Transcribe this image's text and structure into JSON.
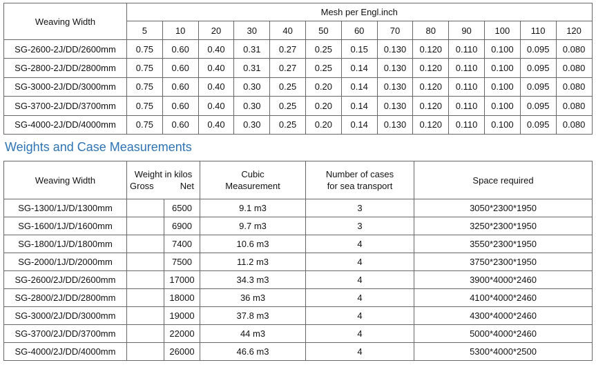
{
  "mesh_table": {
    "header": {
      "weaving_width": "Weaving Width",
      "mesh_title": "Mesh per Engl.inch",
      "mesh_counts": [
        "5",
        "10",
        "20",
        "30",
        "40",
        "50",
        "60",
        "70",
        "80",
        "90",
        "100",
        "110",
        "120"
      ]
    },
    "rows": [
      [
        "SG-2600-2J/DD/2600mm",
        "0.75",
        "0.60",
        "0.40",
        "0.31",
        "0.27",
        "0.25",
        "0.15",
        "0.130",
        "0.120",
        "0.110",
        "0.100",
        "0.095",
        "0.080"
      ],
      [
        "SG-2800-2J/DD/2800mm",
        "0.75",
        "0.60",
        "0.40",
        "0.31",
        "0.27",
        "0.25",
        "0.14",
        "0.130",
        "0.120",
        "0.110",
        "0.100",
        "0.095",
        "0.080"
      ],
      [
        "SG-3000-2J/DD/3000mm",
        "0.75",
        "0.60",
        "0.40",
        "0.30",
        "0.25",
        "0.20",
        "0.14",
        "0.130",
        "0.120",
        "0.110",
        "0.100",
        "0.095",
        "0.080"
      ],
      [
        "SG-3700-2J/DD/3700mm",
        "0.75",
        "0.60",
        "0.40",
        "0.30",
        "0.25",
        "0.20",
        "0.14",
        "0.130",
        "0.120",
        "0.110",
        "0.100",
        "0.095",
        "0.080"
      ],
      [
        "SG-4000-2J/DD/4000mm",
        "0.75",
        "0.60",
        "0.40",
        "0.30",
        "0.25",
        "0.20",
        "0.14",
        "0.130",
        "0.120",
        "0.110",
        "0.100",
        "0.095",
        "0.080"
      ]
    ]
  },
  "section_title": "Weights and Case Measurements",
  "case_table": {
    "header": {
      "weaving_width": "Weaving Width",
      "weight": "Weight in kilos",
      "gross": "Gross",
      "net": "Net",
      "cubic": [
        "Cubic",
        "Measurement"
      ],
      "cases": [
        "Number of cases",
        "for sea transport"
      ],
      "space": "Space required"
    },
    "rows": [
      {
        "model": "SG-1300/1J/D/1300mm",
        "net": "6500",
        "cubic": "9.1 m3",
        "cases": "3",
        "space": "3050*2300*1950"
      },
      {
        "model": "SG-1600/1J/D/1600mm",
        "net": "6900",
        "cubic": "9.7 m3",
        "cases": "3",
        "space": "3250*2300*1950"
      },
      {
        "model": "SG-1800/1J/D/1800mm",
        "net": "7400",
        "cubic": "10.6 m3",
        "cases": "4",
        "space": "3550*2300*1950"
      },
      {
        "model": "SG-2000/1J/D/2000mm",
        "net": "7500",
        "cubic": "11.2 m3",
        "cases": "4",
        "space": "3750*2300*1950"
      },
      {
        "model": "SG-2600/2J/DD/2600mm",
        "net": "17000",
        "cubic": "34.3 m3",
        "cases": "4",
        "space": "3900*4000*2460"
      },
      {
        "model": "SG-2800/2J/DD/2800mm",
        "net": "18000",
        "cubic": "36 m3",
        "cases": "4",
        "space": "4100*4000*2460"
      },
      {
        "model": "SG-3000/2J/DD/3000mm",
        "net": "19000",
        "cubic": "37.8 m3",
        "cases": "4",
        "space": "4300*4000*2460"
      },
      {
        "model": "SG-3700/2J/DD/3700mm",
        "net": "22000",
        "cubic": "44 m3",
        "cases": "4",
        "space": "5000*4000*2460"
      },
      {
        "model": "SG-4000/2J/DD/4000mm",
        "net": "26000",
        "cubic": "46.6 m3",
        "cases": "4",
        "space": "5300*4000*2500"
      }
    ]
  }
}
